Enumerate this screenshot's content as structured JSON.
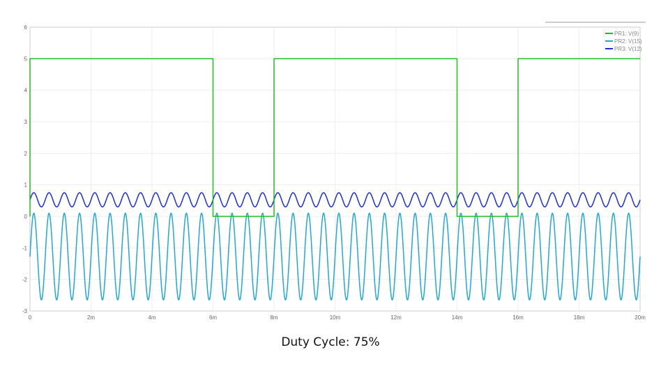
{
  "chart_data": {
    "type": "line",
    "title": "",
    "xlabel": "",
    "ylabel": "",
    "xlim": [
      0,
      20
    ],
    "ylim": [
      -3,
      6
    ],
    "x_ticks": [
      "0",
      "2m",
      "4m",
      "6m",
      "8m",
      "10m",
      "12m",
      "14m",
      "16m",
      "18m",
      "20m"
    ],
    "y_ticks": [
      "-3",
      "-2",
      "-1",
      "0",
      "1",
      "2",
      "3",
      "4",
      "5",
      "6"
    ],
    "x_unit": "ms",
    "grid": true,
    "legend_position": "top-right",
    "series": [
      {
        "name": "PR1: V(9)",
        "color": "#22bb22",
        "waveform": "square",
        "points": [
          [
            0,
            0
          ],
          [
            0,
            5
          ],
          [
            6,
            5
          ],
          [
            6,
            0
          ],
          [
            8,
            0
          ],
          [
            8,
            5
          ],
          [
            14,
            5
          ],
          [
            14,
            0
          ],
          [
            16,
            0
          ],
          [
            16,
            5
          ],
          [
            20,
            5
          ]
        ]
      },
      {
        "name": "PR2: V(15)",
        "color": "#1ea8d8",
        "waveform": "sinusoid",
        "frequency_khz": 2,
        "approx_min": -2.65,
        "approx_max": 0.1
      },
      {
        "name": "PR3: V(12)",
        "color": "#1a2ee0",
        "waveform": "sinusoid",
        "frequency_khz": 2,
        "approx_min": 0.3,
        "approx_max": 0.75
      }
    ]
  },
  "caption": "Duty Cycle: 75%"
}
